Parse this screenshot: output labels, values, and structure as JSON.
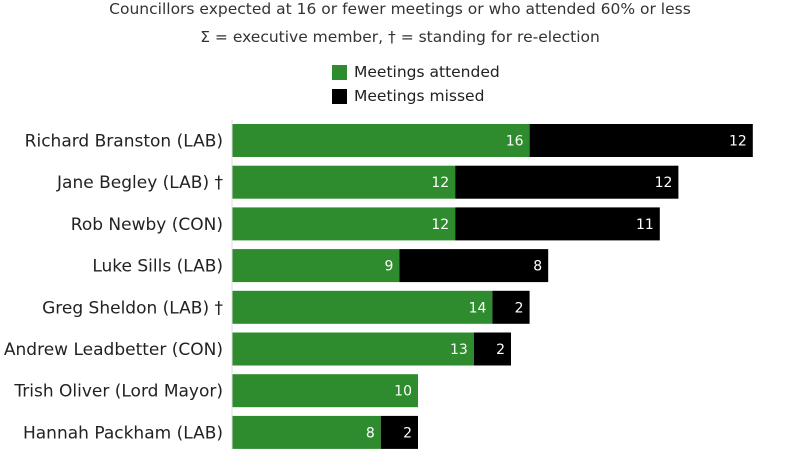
{
  "subtitle_line1": "Councillors expected at 16 or fewer meetings or who attended 60% or less",
  "subtitle_line2": "Σ = executive member, † = standing for re-election",
  "chart_data": {
    "type": "bar",
    "orientation": "horizontal",
    "stacked": true,
    "categories": [
      "Richard Branston (LAB)",
      "Jane Begley (LAB) †",
      "Rob Newby (CON)",
      "Luke Sills (LAB)",
      "Greg Sheldon (LAB) †",
      "Andrew Leadbetter (CON)",
      "Trish Oliver (Lord Mayor)",
      "Hannah Packham (LAB)"
    ],
    "series": [
      {
        "name": "Meetings attended",
        "color": "#2e8b2e",
        "values": [
          16,
          12,
          12,
          9,
          14,
          13,
          10,
          8
        ]
      },
      {
        "name": "Meetings missed",
        "color": "#000000",
        "values": [
          12,
          12,
          11,
          8,
          2,
          2,
          0,
          2
        ]
      }
    ],
    "legend_position": "top-center",
    "grid": false,
    "data_labels": true
  }
}
